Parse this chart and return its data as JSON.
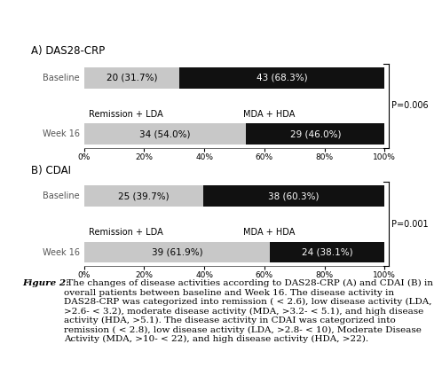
{
  "panel_A_title": "A) DAS28-CRP",
  "panel_B_title": "B) CDAI",
  "values_A": [
    [
      31.7,
      68.3
    ],
    [
      54.0,
      46.0
    ]
  ],
  "labels_A": [
    [
      "20 (31.7%)",
      "43 (68.3%)"
    ],
    [
      "34 (54.0%)",
      "29 (46.0%)"
    ]
  ],
  "values_B": [
    [
      39.7,
      60.3
    ],
    [
      61.9,
      38.1
    ]
  ],
  "labels_B": [
    [
      "25 (39.7%)",
      "38 (60.3%)"
    ],
    [
      "39 (61.9%)",
      "24 (38.1%)"
    ]
  ],
  "color_light": "#c8c8c8",
  "color_dark": "#111111",
  "p_value_A": "P=0.006",
  "p_value_B": "P=0.001",
  "legend_left": "Remission + LDA",
  "legend_right": "MDA + HDA",
  "xticks": [
    0,
    20,
    40,
    60,
    80,
    100
  ],
  "xtick_labels": [
    "0%",
    "20%",
    "40%",
    "60%",
    "80%",
    "100%"
  ],
  "fig_caption_bold": "Figure 2:",
  "fig_caption_rest": " The changes of disease activities according to DAS28-CRP (A) and CDAI (B) in overall patients between baseline and Week 16. The disease activity in DAS28-CRP was categorized into remission ( < 2.6), low disease activity (LDA, >2.6- < 3.2), moderate disease activity (MDA, >3.2- < 5.1), and high disease activity (HDA, >5.1). The disease activity in CDAI was categorized into remission ( < 2.8), low disease activity (LDA, >2.8- < 10), Moderate Disease Activity (MDA, >10- < 22), and high disease activity (HDA, >22)."
}
